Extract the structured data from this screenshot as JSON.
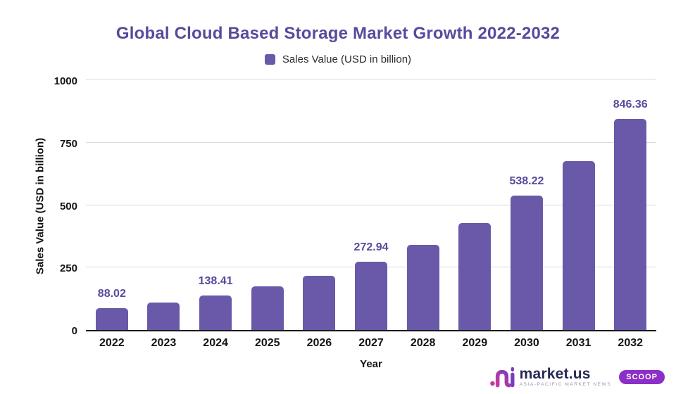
{
  "chart_data": {
    "type": "bar",
    "title": "Global Cloud Based Storage Market Growth 2022-2032",
    "series_name": "Sales Value (USD in billion)",
    "categories": [
      "2022",
      "2023",
      "2024",
      "2025",
      "2026",
      "2027",
      "2028",
      "2029",
      "2030",
      "2031",
      "2032"
    ],
    "values": [
      88.02,
      110.4,
      138.41,
      173.6,
      217.7,
      272.94,
      342.3,
      429.4,
      538.22,
      675.1,
      846.36
    ],
    "data_labels": [
      "88.02",
      "",
      "138.41",
      "",
      "",
      "272.94",
      "",
      "",
      "538.22",
      "",
      "846.36"
    ],
    "xlabel": "Year",
    "ylabel": "Sales Value (USD in billion)",
    "ylim": [
      0,
      1000
    ],
    "yticks": [
      0,
      250,
      500,
      750,
      1000
    ],
    "grid": true,
    "legend_position": "top-center",
    "bar_color": "#6959A8",
    "label_color": "#5A499C"
  },
  "branding": {
    "wordmark": "market.us",
    "tagline": "ASIA-PACIFIC MARKET NEWS",
    "badge": "SCOOP"
  },
  "colors": {
    "title_text": "#5A499C",
    "bar_fill": "#6959A8",
    "axis_text": "#141414",
    "gridline": "#DBDBDB",
    "badge_bg": "#8C2FC7",
    "wordmark_navy": "#252A52",
    "logo_pink": "#C9399F",
    "logo_purple": "#7C3BBB"
  }
}
